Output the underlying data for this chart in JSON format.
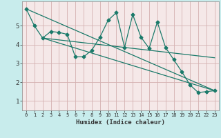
{
  "title": "",
  "xlabel": "Humidex (Indice chaleur)",
  "bg_color": "#c8ecec",
  "plot_bg_color": "#f5e8e8",
  "grid_color": "#d4b0b0",
  "line_color": "#1a7a6a",
  "x_ticks": [
    0,
    1,
    2,
    3,
    4,
    5,
    6,
    7,
    8,
    9,
    10,
    11,
    12,
    13,
    14,
    15,
    16,
    17,
    18,
    19,
    20,
    21,
    22,
    23
  ],
  "y_ticks": [
    1,
    2,
    3,
    4,
    5
  ],
  "ylim": [
    0.5,
    6.3
  ],
  "xlim": [
    -0.5,
    23.5
  ],
  "zigzag_x": [
    0,
    1,
    2,
    3,
    4,
    5,
    6,
    7,
    8,
    9,
    10,
    11,
    12,
    13,
    14,
    15,
    16,
    17,
    18,
    19,
    20,
    21,
    22,
    23
  ],
  "zigzag_y": [
    5.9,
    5.0,
    4.35,
    4.7,
    4.65,
    4.55,
    3.35,
    3.35,
    3.7,
    4.4,
    5.3,
    5.7,
    3.85,
    5.6,
    4.4,
    3.8,
    5.2,
    3.85,
    3.2,
    2.55,
    1.85,
    1.45,
    1.5,
    1.55
  ],
  "line1_x": [
    0,
    23
  ],
  "line1_y": [
    5.9,
    1.55
  ],
  "line2_x": [
    2,
    23
  ],
  "line2_y": [
    4.35,
    1.55
  ],
  "line3_x": [
    2,
    23
  ],
  "line3_y": [
    4.35,
    3.3
  ]
}
